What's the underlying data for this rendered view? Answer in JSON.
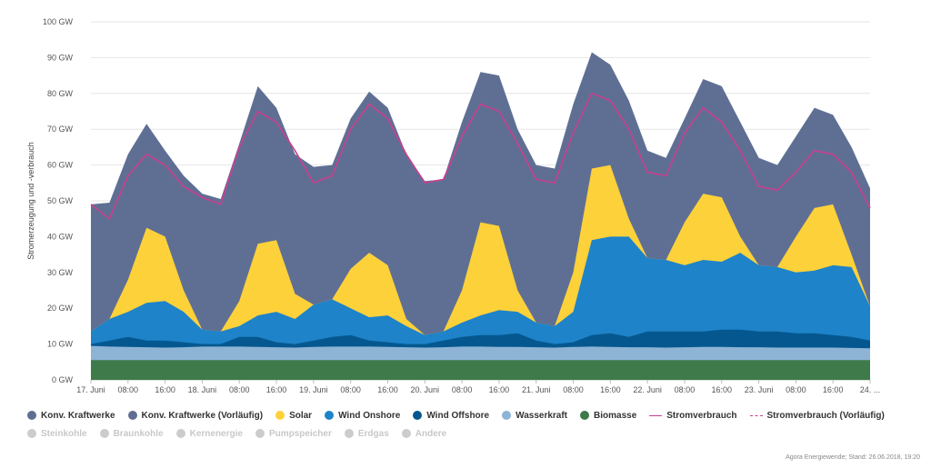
{
  "chart_data": {
    "type": "area",
    "title": "",
    "ylabel": "Stromerzeugung und -verbrauch",
    "unit": "GW",
    "ylim": [
      0,
      100
    ],
    "y_ticks": [
      "0 GW",
      "10 GW",
      "20 GW",
      "30 GW",
      "40 GW",
      "50 GW",
      "60 GW",
      "70 GW",
      "80 GW",
      "90 GW",
      "100 GW"
    ],
    "x_ticks": [
      "17. Juni",
      "08:00",
      "16:00",
      "18. Juni",
      "08:00",
      "16:00",
      "19. Juni",
      "08:00",
      "16:00",
      "20. Juni",
      "08:00",
      "16:00",
      "21. Juni",
      "08:00",
      "16:00",
      "22. Juni",
      "08:00",
      "16:00",
      "23. Juni",
      "08:00",
      "16:00",
      "24. ..."
    ],
    "x_hours": [
      0,
      4,
      8,
      12,
      16,
      20,
      24,
      28,
      32,
      36,
      40,
      44,
      48,
      52,
      56,
      60,
      64,
      68,
      72,
      76,
      80,
      84,
      88,
      92,
      96,
      100,
      104,
      108,
      112,
      116,
      120,
      124,
      128,
      132,
      136,
      140,
      144,
      148,
      152,
      156,
      160,
      164,
      168
    ],
    "stacked_totals": {
      "Biomasse": [
        5.5,
        5.5,
        5.5,
        5.5,
        5.5,
        5.5,
        5.5,
        5.5,
        5.5,
        5.5,
        5.5,
        5.5,
        5.5,
        5.5,
        5.5,
        5.5,
        5.5,
        5.5,
        5.5,
        5.5,
        5.5,
        5.5,
        5.5,
        5.5,
        5.5,
        5.5,
        5.5,
        5.5,
        5.5,
        5.5,
        5.5,
        5.5,
        5.5,
        5.5,
        5.5,
        5.5,
        5.5,
        5.5,
        5.5,
        5.5,
        5.5,
        5.5,
        5.5
      ],
      "Wasserkraft": [
        9.5,
        9.3,
        9.2,
        9.1,
        9.0,
        9.1,
        9.3,
        9.3,
        9.3,
        9.2,
        9.1,
        9.0,
        9.2,
        9.3,
        9.3,
        9.3,
        9.2,
        9.1,
        9.0,
        9.1,
        9.3,
        9.3,
        9.2,
        9.2,
        9.1,
        9.0,
        9.2,
        9.3,
        9.2,
        9.1,
        9.1,
        9.0,
        9.1,
        9.2,
        9.2,
        9.1,
        9.1,
        9.0,
        9.0,
        9.0,
        9.0,
        8.9,
        8.8
      ],
      "Wind Offshore": [
        10.0,
        11.0,
        12.0,
        11.0,
        11.0,
        10.5,
        10.0,
        10.0,
        12.0,
        12.0,
        10.5,
        10.0,
        11.0,
        12.0,
        12.5,
        11.0,
        10.5,
        10.0,
        10.0,
        11.0,
        12.0,
        12.5,
        12.5,
        13.0,
        11.0,
        10.0,
        10.5,
        12.5,
        13.0,
        12.0,
        13.5,
        13.5,
        13.5,
        13.5,
        14.0,
        14.0,
        13.5,
        13.5,
        13.0,
        13.0,
        12.5,
        12.0,
        11.0
      ],
      "Wind Onshore": [
        13.5,
        17.0,
        19.0,
        21.5,
        22.0,
        19.0,
        14.0,
        13.5,
        15.0,
        18.0,
        19.0,
        17.0,
        21.0,
        22.5,
        20.0,
        17.5,
        18.0,
        15.0,
        12.5,
        13.5,
        16.0,
        18.0,
        19.5,
        19.0,
        16.0,
        15.0,
        19.0,
        39.0,
        40.0,
        40.0,
        34.0,
        33.5,
        32.0,
        33.5,
        33.0,
        35.5,
        32.0,
        31.5,
        30.0,
        30.5,
        32.0,
        31.5,
        20.5
      ],
      "Solar": [
        13.5,
        17.0,
        28.0,
        42.5,
        40.0,
        25.0,
        14.0,
        13.5,
        22.0,
        38.0,
        39.0,
        24.0,
        21.0,
        22.5,
        31.0,
        35.5,
        32.0,
        17.0,
        12.5,
        13.5,
        25.0,
        44.0,
        43.0,
        25.0,
        16.0,
        15.0,
        30.0,
        59.0,
        60.0,
        45.0,
        34.0,
        33.5,
        44.0,
        52.0,
        51.0,
        40.0,
        32.0,
        31.5,
        40.0,
        48.0,
        49.0,
        35.0,
        20.5
      ],
      "Konv. Kraftwerke": [
        49.0,
        49.5,
        63.0,
        71.5,
        64.0,
        57.0,
        52.0,
        50.5,
        66.0,
        82.0,
        76.0,
        63.0,
        59.5,
        60.0,
        73.0,
        80.5,
        76.0,
        63.0,
        55.5,
        56.0,
        72.0,
        86.0,
        85.0,
        70.0,
        60.0,
        59.0,
        77.0,
        91.5,
        88.0,
        78.0,
        64.0,
        62.0,
        73.0,
        84.0,
        82.0,
        72.0,
        62.0,
        60.0,
        68.0,
        76.0,
        74.0,
        65.0,
        53.5
      ]
    },
    "Stromverbrauch": [
      49.0,
      45.0,
      57.0,
      63.0,
      60.0,
      54.0,
      51.0,
      49.0,
      65.0,
      75.0,
      72.0,
      64.0,
      55.0,
      57.0,
      70.0,
      77.0,
      73.0,
      63.0,
      55.0,
      56.0,
      68.0,
      77.0,
      75.0,
      66.0,
      56.0,
      55.0,
      69.0,
      80.0,
      78.0,
      70.0,
      58.0,
      57.0,
      69.0,
      76.0,
      72.0,
      64.0,
      54.0,
      53.0,
      58.0,
      64.0,
      63.0,
      58.0,
      48.0
    ],
    "series": [
      {
        "name": "Konv. Kraftwerke",
        "color": "#5f6f94",
        "kind": "area"
      },
      {
        "name": "Konv. Kraftwerke (Vorläufig)",
        "color": "#5f6f94",
        "kind": "area"
      },
      {
        "name": "Solar",
        "color": "#fdd13a",
        "kind": "area"
      },
      {
        "name": "Wind Onshore",
        "color": "#1e83c9",
        "kind": "area"
      },
      {
        "name": "Wind Offshore",
        "color": "#05588f",
        "kind": "area"
      },
      {
        "name": "Wasserkraft",
        "color": "#8db3d5",
        "kind": "area"
      },
      {
        "name": "Biomasse",
        "color": "#3f7a4a",
        "kind": "area"
      },
      {
        "name": "Stromverbrauch",
        "color": "#c9408e",
        "kind": "line"
      },
      {
        "name": "Stromverbrauch (Vorläufig)",
        "color": "#c9408e",
        "kind": "dashed"
      }
    ],
    "hidden_series": [
      "Steinkohle",
      "Braunkohle",
      "Kernenergie",
      "Pumpspeicher",
      "Erdgas",
      "Andere"
    ]
  },
  "legend": {
    "row1": [
      {
        "label": "Konv. Kraftwerke",
        "color": "#5f6f94",
        "kind": "dot"
      },
      {
        "label": "Konv. Kraftwerke (Vorläufig)",
        "color": "#5f6f94",
        "kind": "dot"
      },
      {
        "label": "Solar",
        "color": "#fdd13a",
        "kind": "dot"
      },
      {
        "label": "Wind Onshore",
        "color": "#1e83c9",
        "kind": "dot"
      },
      {
        "label": "Wind Offshore",
        "color": "#05588f",
        "kind": "dot"
      },
      {
        "label": "Wasserkraft",
        "color": "#8db3d5",
        "kind": "dot"
      },
      {
        "label": "Biomasse",
        "color": "#3f7a4a",
        "kind": "dot"
      },
      {
        "label": "Stromverbrauch",
        "color": "#c9408e",
        "kind": "line"
      },
      {
        "label": "Stromverbrauch (Vorläufig)",
        "color": "#c9408e",
        "kind": "dashed"
      }
    ],
    "row2": [
      {
        "label": "Steinkohle",
        "color": "#cccccc",
        "kind": "dot"
      },
      {
        "label": "Braunkohle",
        "color": "#cccccc",
        "kind": "dot"
      },
      {
        "label": "Kernenergie",
        "color": "#cccccc",
        "kind": "dot"
      },
      {
        "label": "Pumpspeicher",
        "color": "#cccccc",
        "kind": "dot"
      },
      {
        "label": "Erdgas",
        "color": "#cccccc",
        "kind": "dot"
      },
      {
        "label": "Andere",
        "color": "#cccccc",
        "kind": "dot"
      }
    ]
  },
  "credit": "Agora Energiewende; Stand: 26.06.2018, 19:20"
}
